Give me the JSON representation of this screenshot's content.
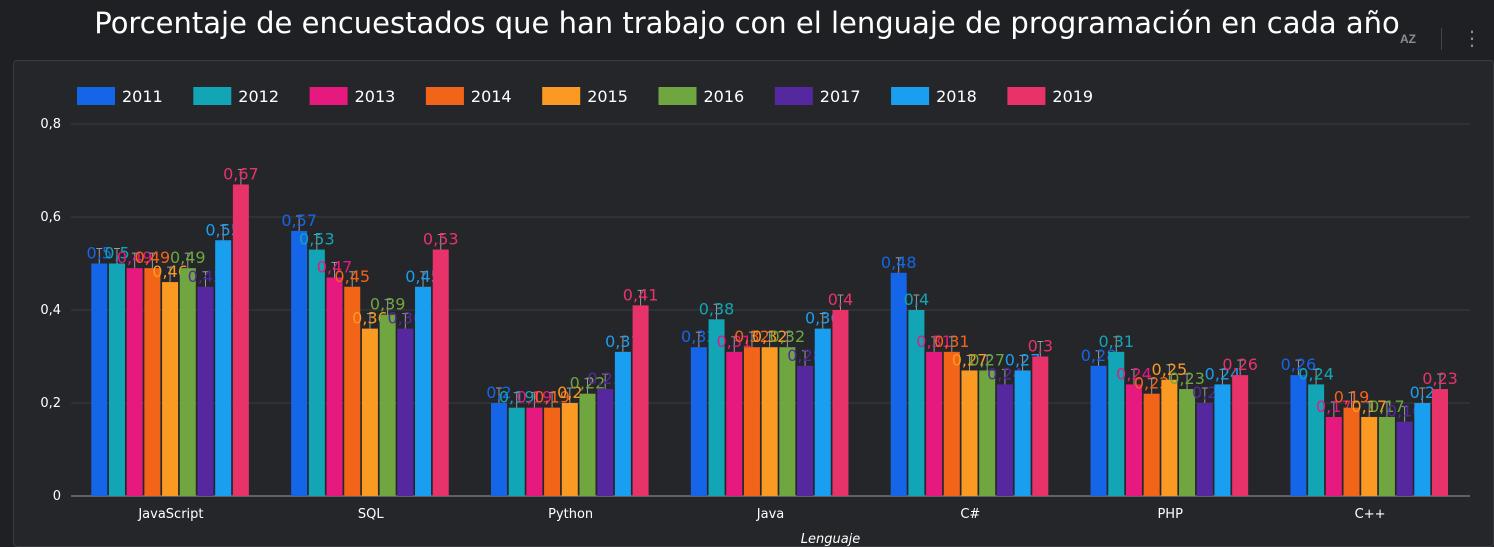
{
  "title": "Porcentaje de encuestados que han trabajo con el lenguaje de programación en cada año",
  "toolbar": {
    "sort_icon": "sort-az-icon",
    "sort_label": "AZ",
    "more_icon": "more-vertical-icon",
    "more_label": "⋮"
  },
  "colors": {
    "background": "#1f2023",
    "panel": "#25262a",
    "grid": "#3a3c40",
    "text": "#ffffff",
    "series": [
      "#1565e8",
      "#12a5b5",
      "#e6197f",
      "#f26418",
      "#fb9a22",
      "#6fa640",
      "#5528a0",
      "#1a9ef0",
      "#e8336a"
    ]
  },
  "chart_data": {
    "type": "bar",
    "title": "Porcentaje de encuestados que han trabajo con el lenguaje de programación en cada año",
    "xlabel": "Lenguaje",
    "ylabel": "",
    "ylim": [
      0,
      0.8
    ],
    "yticks": [
      "0",
      "0,2",
      "0,4",
      "0,6",
      "0,8"
    ],
    "grid": true,
    "legend_position": "top-left",
    "categories": [
      "JavaScript",
      "SQL",
      "Python",
      "Java",
      "C#",
      "PHP",
      "C++"
    ],
    "series": [
      {
        "name": "2011",
        "values": [
          0.5,
          0.57,
          0.2,
          0.32,
          0.48,
          0.28,
          0.26
        ]
      },
      {
        "name": "2012",
        "values": [
          0.5,
          0.53,
          0.19,
          0.38,
          0.4,
          0.31,
          0.24
        ]
      },
      {
        "name": "2013",
        "values": [
          0.49,
          0.47,
          0.19,
          0.31,
          0.31,
          0.24,
          0.17
        ]
      },
      {
        "name": "2014",
        "values": [
          0.49,
          0.45,
          0.19,
          0.32,
          0.31,
          0.22,
          0.19
        ]
      },
      {
        "name": "2015",
        "values": [
          0.46,
          0.36,
          0.2,
          0.32,
          0.27,
          0.25,
          0.17
        ]
      },
      {
        "name": "2016",
        "values": [
          0.49,
          0.39,
          0.22,
          0.32,
          0.27,
          0.23,
          0.17
        ]
      },
      {
        "name": "2017",
        "values": [
          0.45,
          0.36,
          0.23,
          0.28,
          0.24,
          0.2,
          0.16
        ]
      },
      {
        "name": "2018",
        "values": [
          0.55,
          0.45,
          0.31,
          0.36,
          0.27,
          0.24,
          0.2
        ]
      },
      {
        "name": "2019",
        "values": [
          0.67,
          0.53,
          0.41,
          0.4,
          0.3,
          0.26,
          0.23
        ]
      }
    ]
  }
}
